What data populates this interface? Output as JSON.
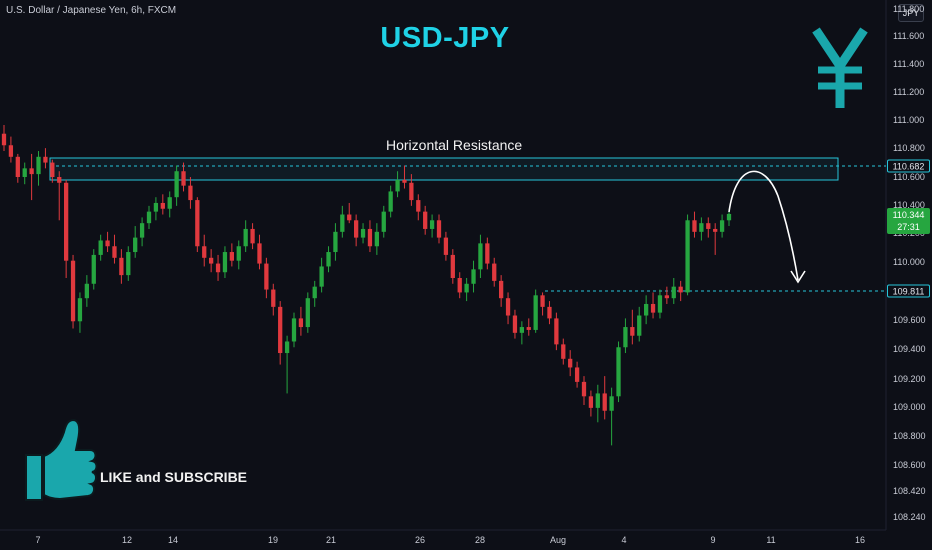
{
  "header": {
    "symbol_text": "U.S. Dollar / Japanese Yen, 6h, FXCM",
    "currency_badge": "JPY"
  },
  "title": "USD-JPY",
  "annotations": {
    "resistance_label": "Horizontal Resistance",
    "like_text": "LIKE and SUBSCRIBE",
    "yen_icon": "yen-sign-icon",
    "thumbs_up_icon": "thumbs-up-icon"
  },
  "price_tags": {
    "resistance": "110.682",
    "current": "110.344",
    "countdown": "27:31",
    "support": "109.811"
  },
  "colors": {
    "background": "#0d0f17",
    "bull": "#26a640",
    "bear": "#e0393e",
    "accent": "#26c6da",
    "title": "#1fd2e6",
    "arrow": "#ffffff"
  },
  "chart_data": {
    "type": "candlestick",
    "timeframe": "6h",
    "y_axis": {
      "ticks": [
        "111.800",
        "111.600",
        "111.400",
        "111.200",
        "111.000",
        "110.800",
        "110.600",
        "110.400",
        "110.200",
        "110.000",
        "109.800",
        "109.600",
        "109.400",
        "109.200",
        "109.000",
        "108.800",
        "108.600",
        "108.420",
        "108.240"
      ]
    },
    "x_axis": {
      "ticks": [
        "7",
        "12",
        "14",
        "19",
        "21",
        "26",
        "28",
        "Aug",
        "4",
        "9",
        "11",
        "16"
      ]
    },
    "levels": {
      "resistance_zone": [
        110.6,
        110.72
      ],
      "resistance_line": 110.682,
      "support_line": 109.811,
      "current_price": 110.344
    },
    "candles": [
      {
        "o": 110.9,
        "h": 110.96,
        "l": 110.78,
        "c": 110.82
      },
      {
        "o": 110.82,
        "h": 110.88,
        "l": 110.7,
        "c": 110.74
      },
      {
        "o": 110.74,
        "h": 110.76,
        "l": 110.56,
        "c": 110.6
      },
      {
        "o": 110.6,
        "h": 110.7,
        "l": 110.55,
        "c": 110.66
      },
      {
        "o": 110.66,
        "h": 110.76,
        "l": 110.44,
        "c": 110.62
      },
      {
        "o": 110.62,
        "h": 110.78,
        "l": 110.54,
        "c": 110.74
      },
      {
        "o": 110.74,
        "h": 110.8,
        "l": 110.66,
        "c": 110.7
      },
      {
        "o": 110.7,
        "h": 110.72,
        "l": 110.56,
        "c": 110.6
      },
      {
        "o": 110.6,
        "h": 110.64,
        "l": 110.3,
        "c": 110.56
      },
      {
        "o": 110.56,
        "h": 110.58,
        "l": 109.9,
        "c": 110.02
      },
      {
        "o": 110.02,
        "h": 110.06,
        "l": 109.55,
        "c": 109.6
      },
      {
        "o": 109.6,
        "h": 109.8,
        "l": 109.52,
        "c": 109.76
      },
      {
        "o": 109.76,
        "h": 109.92,
        "l": 109.7,
        "c": 109.86
      },
      {
        "o": 109.86,
        "h": 110.1,
        "l": 109.82,
        "c": 110.06
      },
      {
        "o": 110.06,
        "h": 110.2,
        "l": 110.02,
        "c": 110.16
      },
      {
        "o": 110.16,
        "h": 110.22,
        "l": 110.08,
        "c": 110.12
      },
      {
        "o": 110.12,
        "h": 110.2,
        "l": 110.0,
        "c": 110.04
      },
      {
        "o": 110.04,
        "h": 110.1,
        "l": 109.86,
        "c": 109.92
      },
      {
        "o": 109.92,
        "h": 110.12,
        "l": 109.88,
        "c": 110.08
      },
      {
        "o": 110.08,
        "h": 110.26,
        "l": 110.04,
        "c": 110.18
      },
      {
        "o": 110.18,
        "h": 110.32,
        "l": 110.12,
        "c": 110.28
      },
      {
        "o": 110.28,
        "h": 110.4,
        "l": 110.24,
        "c": 110.36
      },
      {
        "o": 110.36,
        "h": 110.46,
        "l": 110.3,
        "c": 110.42
      },
      {
        "o": 110.42,
        "h": 110.48,
        "l": 110.34,
        "c": 110.38
      },
      {
        "o": 110.38,
        "h": 110.5,
        "l": 110.32,
        "c": 110.46
      },
      {
        "o": 110.46,
        "h": 110.68,
        "l": 110.4,
        "c": 110.64
      },
      {
        "o": 110.64,
        "h": 110.7,
        "l": 110.5,
        "c": 110.54
      },
      {
        "o": 110.54,
        "h": 110.6,
        "l": 110.38,
        "c": 110.44
      },
      {
        "o": 110.44,
        "h": 110.46,
        "l": 110.08,
        "c": 110.12
      },
      {
        "o": 110.12,
        "h": 110.2,
        "l": 109.98,
        "c": 110.04
      },
      {
        "o": 110.04,
        "h": 110.1,
        "l": 109.94,
        "c": 110.0
      },
      {
        "o": 110.0,
        "h": 110.06,
        "l": 109.88,
        "c": 109.94
      },
      {
        "o": 109.94,
        "h": 110.12,
        "l": 109.9,
        "c": 110.08
      },
      {
        "o": 110.08,
        "h": 110.14,
        "l": 109.98,
        "c": 110.02
      },
      {
        "o": 110.02,
        "h": 110.16,
        "l": 109.96,
        "c": 110.12
      },
      {
        "o": 110.12,
        "h": 110.3,
        "l": 110.08,
        "c": 110.24
      },
      {
        "o": 110.24,
        "h": 110.28,
        "l": 110.1,
        "c": 110.14
      },
      {
        "o": 110.14,
        "h": 110.2,
        "l": 109.96,
        "c": 110.0
      },
      {
        "o": 110.0,
        "h": 110.04,
        "l": 109.76,
        "c": 109.82
      },
      {
        "o": 109.82,
        "h": 109.86,
        "l": 109.64,
        "c": 109.7
      },
      {
        "o": 109.7,
        "h": 109.74,
        "l": 109.3,
        "c": 109.38
      },
      {
        "o": 109.38,
        "h": 109.5,
        "l": 109.1,
        "c": 109.46
      },
      {
        "o": 109.46,
        "h": 109.66,
        "l": 109.42,
        "c": 109.62
      },
      {
        "o": 109.62,
        "h": 109.7,
        "l": 109.5,
        "c": 109.56
      },
      {
        "o": 109.56,
        "h": 109.8,
        "l": 109.52,
        "c": 109.76
      },
      {
        "o": 109.76,
        "h": 109.88,
        "l": 109.7,
        "c": 109.84
      },
      {
        "o": 109.84,
        "h": 110.04,
        "l": 109.8,
        "c": 109.98
      },
      {
        "o": 109.98,
        "h": 110.12,
        "l": 109.94,
        "c": 110.08
      },
      {
        "o": 110.08,
        "h": 110.28,
        "l": 110.02,
        "c": 110.22
      },
      {
        "o": 110.22,
        "h": 110.4,
        "l": 110.18,
        "c": 110.34
      },
      {
        "o": 110.34,
        "h": 110.42,
        "l": 110.28,
        "c": 110.3
      },
      {
        "o": 110.3,
        "h": 110.34,
        "l": 110.12,
        "c": 110.18
      },
      {
        "o": 110.18,
        "h": 110.28,
        "l": 110.14,
        "c": 110.24
      },
      {
        "o": 110.24,
        "h": 110.3,
        "l": 110.08,
        "c": 110.12
      },
      {
        "o": 110.12,
        "h": 110.28,
        "l": 110.06,
        "c": 110.22
      },
      {
        "o": 110.22,
        "h": 110.4,
        "l": 110.18,
        "c": 110.36
      },
      {
        "o": 110.36,
        "h": 110.54,
        "l": 110.32,
        "c": 110.5
      },
      {
        "o": 110.5,
        "h": 110.64,
        "l": 110.46,
        "c": 110.58
      },
      {
        "o": 110.58,
        "h": 110.68,
        "l": 110.52,
        "c": 110.56
      },
      {
        "o": 110.56,
        "h": 110.62,
        "l": 110.4,
        "c": 110.44
      },
      {
        "o": 110.44,
        "h": 110.48,
        "l": 110.3,
        "c": 110.36
      },
      {
        "o": 110.36,
        "h": 110.4,
        "l": 110.2,
        "c": 110.24
      },
      {
        "o": 110.24,
        "h": 110.34,
        "l": 110.18,
        "c": 110.3
      },
      {
        "o": 110.3,
        "h": 110.34,
        "l": 110.14,
        "c": 110.18
      },
      {
        "o": 110.18,
        "h": 110.22,
        "l": 110.02,
        "c": 110.06
      },
      {
        "o": 110.06,
        "h": 110.1,
        "l": 109.86,
        "c": 109.9
      },
      {
        "o": 109.9,
        "h": 109.94,
        "l": 109.76,
        "c": 109.8
      },
      {
        "o": 109.8,
        "h": 109.9,
        "l": 109.74,
        "c": 109.86
      },
      {
        "o": 109.86,
        "h": 110.02,
        "l": 109.8,
        "c": 109.96
      },
      {
        "o": 109.96,
        "h": 110.2,
        "l": 109.9,
        "c": 110.14
      },
      {
        "o": 110.14,
        "h": 110.18,
        "l": 109.96,
        "c": 110.0
      },
      {
        "o": 110.0,
        "h": 110.04,
        "l": 109.84,
        "c": 109.88
      },
      {
        "o": 109.88,
        "h": 109.92,
        "l": 109.7,
        "c": 109.76
      },
      {
        "o": 109.76,
        "h": 109.8,
        "l": 109.58,
        "c": 109.64
      },
      {
        "o": 109.64,
        "h": 109.68,
        "l": 109.48,
        "c": 109.52
      },
      {
        "o": 109.52,
        "h": 109.6,
        "l": 109.44,
        "c": 109.56
      },
      {
        "o": 109.56,
        "h": 109.62,
        "l": 109.5,
        "c": 109.54
      },
      {
        "o": 109.54,
        "h": 109.82,
        "l": 109.52,
        "c": 109.78
      },
      {
        "o": 109.78,
        "h": 109.8,
        "l": 109.64,
        "c": 109.7
      },
      {
        "o": 109.7,
        "h": 109.74,
        "l": 109.58,
        "c": 109.62
      },
      {
        "o": 109.62,
        "h": 109.66,
        "l": 109.4,
        "c": 109.44
      },
      {
        "o": 109.44,
        "h": 109.48,
        "l": 109.3,
        "c": 109.34
      },
      {
        "o": 109.34,
        "h": 109.4,
        "l": 109.22,
        "c": 109.28
      },
      {
        "o": 109.28,
        "h": 109.32,
        "l": 109.14,
        "c": 109.18
      },
      {
        "o": 109.18,
        "h": 109.22,
        "l": 109.02,
        "c": 109.08
      },
      {
        "o": 109.08,
        "h": 109.12,
        "l": 108.94,
        "c": 109.0
      },
      {
        "o": 109.0,
        "h": 109.16,
        "l": 108.9,
        "c": 109.1
      },
      {
        "o": 109.1,
        "h": 109.22,
        "l": 108.92,
        "c": 108.98
      },
      {
        "o": 108.98,
        "h": 109.14,
        "l": 108.74,
        "c": 109.08
      },
      {
        "o": 109.08,
        "h": 109.46,
        "l": 109.04,
        "c": 109.42
      },
      {
        "o": 109.42,
        "h": 109.62,
        "l": 109.38,
        "c": 109.56
      },
      {
        "o": 109.56,
        "h": 109.68,
        "l": 109.44,
        "c": 109.5
      },
      {
        "o": 109.5,
        "h": 109.7,
        "l": 109.46,
        "c": 109.64
      },
      {
        "o": 109.64,
        "h": 109.78,
        "l": 109.58,
        "c": 109.72
      },
      {
        "o": 109.72,
        "h": 109.8,
        "l": 109.62,
        "c": 109.66
      },
      {
        "o": 109.66,
        "h": 109.82,
        "l": 109.62,
        "c": 109.78
      },
      {
        "o": 109.78,
        "h": 109.84,
        "l": 109.72,
        "c": 109.76
      },
      {
        "o": 109.76,
        "h": 109.9,
        "l": 109.72,
        "c": 109.84
      },
      {
        "o": 109.84,
        "h": 109.88,
        "l": 109.74,
        "c": 109.8
      },
      {
        "o": 109.8,
        "h": 110.34,
        "l": 109.78,
        "c": 110.3
      },
      {
        "o": 110.3,
        "h": 110.36,
        "l": 110.18,
        "c": 110.22
      },
      {
        "o": 110.22,
        "h": 110.32,
        "l": 110.16,
        "c": 110.28
      },
      {
        "o": 110.28,
        "h": 110.32,
        "l": 110.18,
        "c": 110.24
      },
      {
        "o": 110.24,
        "h": 110.28,
        "l": 110.06,
        "c": 110.22
      },
      {
        "o": 110.22,
        "h": 110.34,
        "l": 110.18,
        "c": 110.3
      },
      {
        "o": 110.3,
        "h": 110.38,
        "l": 110.26,
        "c": 110.344
      }
    ]
  }
}
